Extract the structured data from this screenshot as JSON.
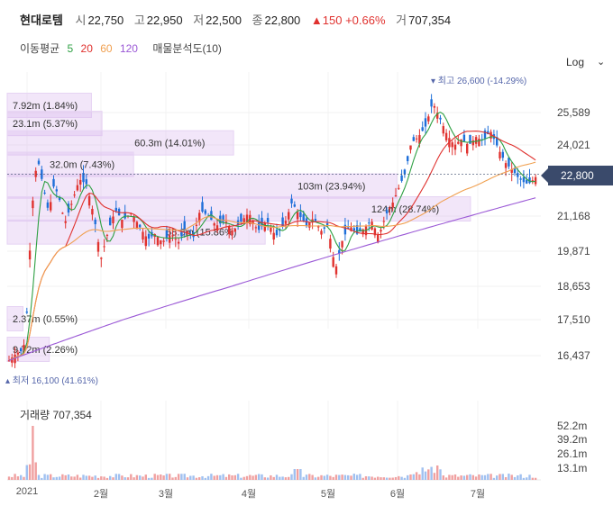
{
  "header": {
    "name": "현대로템",
    "open_label": "시",
    "open": "22,750",
    "high_label": "고",
    "high": "22,950",
    "low_label": "저",
    "low": "22,500",
    "close_label": "종",
    "close": "22,800",
    "change": "▲150 +0.66%",
    "volume_label": "거",
    "volume": "707,354"
  },
  "moving_average": {
    "label": "이동평균",
    "periods": [
      {
        "value": "5",
        "color": "#2ea043"
      },
      {
        "value": "20",
        "color": "#e0322f"
      },
      {
        "value": "60",
        "color": "#f0a050"
      },
      {
        "value": "120",
        "color": "#9b59d6"
      }
    ],
    "volume_profile_label": "매물분석도(10)"
  },
  "controls": {
    "log_label": "Log"
  },
  "current_price_tag": "22,800",
  "chart_data": {
    "type": "candlestick",
    "y_ticks": [
      "25,589",
      "24,021",
      "21,168",
      "19,871",
      "18,653",
      "17,510",
      "16,437"
    ],
    "x_labels": [
      "2021",
      "2월",
      "3월",
      "4월",
      "5월",
      "6월",
      "7월"
    ],
    "max_annotation": "최고 26,600 (-14.29%)",
    "min_annotation": "최저 16,100 (41.61%)",
    "volume_profile": [
      {
        "label": "7.92m (1.84%)",
        "price": 25950,
        "width": 0.16
      },
      {
        "label": "23.1m (5.37%)",
        "price": 25050,
        "width": 0.18
      },
      {
        "label": "60.3m (14.01%)",
        "price": 24120,
        "width": 0.43
      },
      {
        "label": "32.0m (7.43%)",
        "price": 23210,
        "width": 0.24
      },
      {
        "label": "103m (23.94%)",
        "price": 22330,
        "width": 0.74
      },
      {
        "label": "124m (28.74%)",
        "price": 21440,
        "width": 0.88
      },
      {
        "label": "68.3m (15.86%)",
        "price": 20570,
        "width": 0.49
      },
      {
        "label": "2.37m (0.55%)",
        "price": 17540,
        "width": 0.03
      },
      {
        "label": "9.72m (2.26%)",
        "price": 16620,
        "width": 0.08
      }
    ],
    "volume_title": "거래량",
    "volume_value": "707,354",
    "volume_ticks": [
      "52.2m",
      "39.2m",
      "26.1m",
      "13.1m"
    ]
  }
}
